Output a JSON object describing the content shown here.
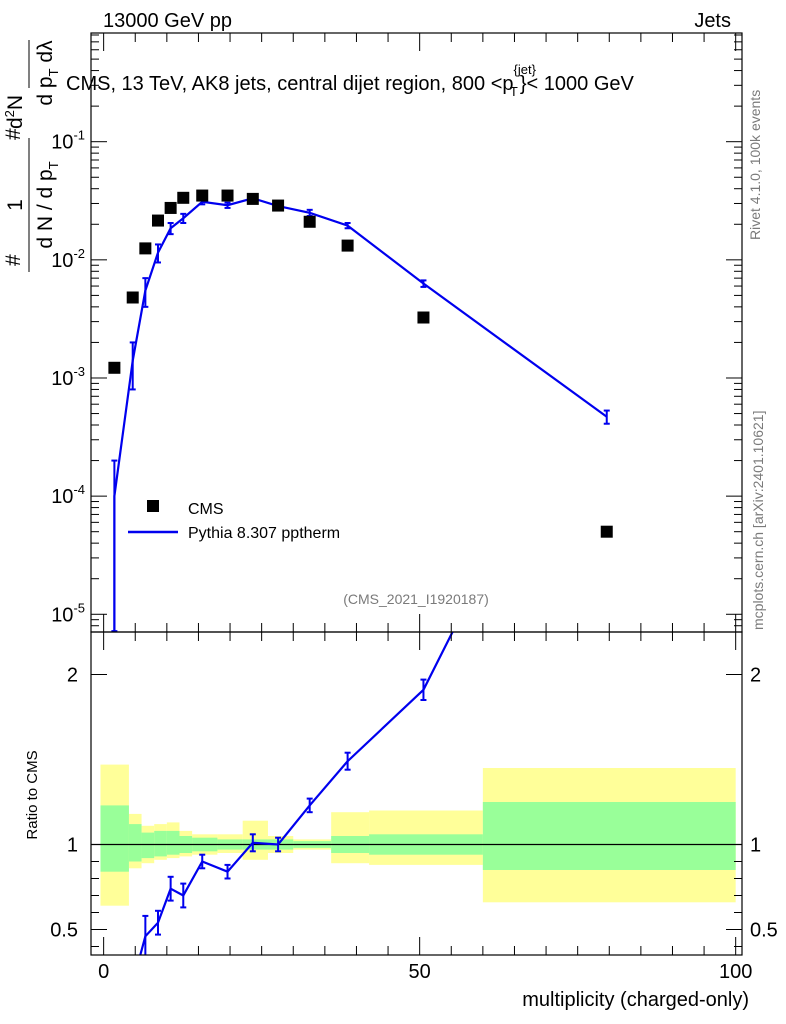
{
  "header": {
    "left_label": "13000 GeV pp",
    "right_label": "Jets"
  },
  "plot_title": {
    "main": "CMS, 13 TeV, AK8 jets, central dijet region, 800 <p",
    "sup": "{jet}",
    "sub": "T",
    "tail": "}< 1000 GeV"
  },
  "y_axis_main": {
    "one": "1",
    "denominator": "d N / d p",
    "denominator_sub": "T",
    "hash1": "#",
    "hash2": "#",
    "dN": "d",
    "dN_sup": "2",
    "dN_tail": "N",
    "num_frac": "d p",
    "num_frac_sub": "T",
    "num_frac_tail": " dλ"
  },
  "side_texts": {
    "rivet": "Rivet 4.1.0,  100k events",
    "mcplots": "mcplots.cern.ch [arXiv:2401.10621]"
  },
  "analysis_id": "(CMS_2021_I1920187)",
  "legend": {
    "data_label": "CMS",
    "mc_label": "Pythia 8.307 pptherm"
  },
  "x_axis_title": "multiplicity (charged-only)",
  "ratio_y_title": "Ratio to CMS",
  "colors": {
    "data": "#000000",
    "mc": "#0000ee",
    "band_inner": "#99ff99",
    "band_outer": "#ffff99"
  },
  "chart_data": {
    "type": "scatter",
    "title": "CMS, 13 TeV, AK8 jets, central dijet region, 800 < pT jet < 1000 GeV",
    "xlabel": "multiplicity (charged-only)",
    "ylabel": "1/(dN/dpT) d2N/(dpT dλ)",
    "xlim": [
      -2,
      101
    ],
    "ylim_log": [
      -5.15,
      -0.08
    ],
    "x_ticks": [
      0,
      50,
      100
    ],
    "x_tick_labels": [
      "0",
      "50",
      "100"
    ],
    "y_ticks": [
      {
        "exp": -5,
        "label": "10",
        "sup": "-5"
      },
      {
        "exp": -4,
        "label": "10",
        "sup": "-4"
      },
      {
        "exp": -3,
        "label": "10",
        "sup": "-3"
      },
      {
        "exp": -2,
        "label": "10",
        "sup": "-2"
      },
      {
        "exp": -1,
        "label": "10",
        "sup": "-1"
      }
    ],
    "ratio_ylim": [
      0.35,
      2.25
    ],
    "ratio_ticks": [
      0.5,
      1,
      2
    ],
    "ratio_tick_labels": [
      "0.5",
      "1",
      "2"
    ],
    "bins": [
      [
        0,
        4
      ],
      [
        4,
        6
      ],
      [
        6,
        8
      ],
      [
        8,
        10
      ],
      [
        10,
        12
      ],
      [
        12,
        14
      ],
      [
        14,
        18
      ],
      [
        18,
        22
      ],
      [
        22,
        26
      ],
      [
        26,
        30
      ],
      [
        30,
        36
      ],
      [
        36,
        42
      ],
      [
        42,
        60
      ],
      [
        60,
        100
      ]
    ],
    "series": [
      {
        "name": "CMS",
        "x": [
          1.7,
          4.6,
          6.6,
          8.6,
          10.6,
          12.6,
          15.6,
          19.6,
          23.6,
          27.6,
          32.6,
          38.6,
          50.6,
          79.6
        ],
        "y": [
          0.00122,
          0.0048,
          0.0125,
          0.0215,
          0.0275,
          0.0335,
          0.035,
          0.035,
          0.0328,
          0.0288,
          0.021,
          0.0132,
          0.00325,
          5e-05
        ]
      },
      {
        "name": "Pythia 8.307 pptherm",
        "x": [
          1.7,
          4.6,
          6.6,
          8.6,
          10.6,
          12.6,
          15.6,
          19.6,
          23.6,
          27.6,
          32.6,
          38.6,
          50.6,
          79.6
        ],
        "y": [
          0.0001,
          0.0014,
          0.0055,
          0.0115,
          0.0185,
          0.0225,
          0.031,
          0.029,
          0.0332,
          0.0285,
          0.025,
          0.0195,
          0.0063,
          0.00047
        ],
        "yerr": [
          0.0001,
          0.0006,
          0.0015,
          0.002,
          0.002,
          0.002,
          0.0015,
          0.0015,
          0.0015,
          0.0015,
          0.0015,
          0.001,
          0.0004,
          6e-05
        ]
      }
    ],
    "ratio": {
      "mc_x": [
        6.6,
        8.6,
        10.6,
        12.6,
        15.6,
        19.6,
        23.6,
        27.6,
        32.6,
        38.6,
        50.6,
        55.2
      ],
      "mc_y": [
        0.46,
        0.54,
        0.74,
        0.7,
        0.9,
        0.84,
        1.01,
        1.0,
        1.23,
        1.49,
        1.91,
        2.25
      ],
      "mc_err": [
        0.12,
        0.07,
        0.07,
        0.07,
        0.04,
        0.04,
        0.05,
        0.04,
        0.04,
        0.05,
        0.06,
        0
      ],
      "band_inner": [
        {
          "x0": -0.5,
          "x1": 4,
          "lo": 0.84,
          "hi": 1.23
        },
        {
          "x0": 4,
          "x1": 6,
          "lo": 0.9,
          "hi": 1.12
        },
        {
          "x0": 6,
          "x1": 8,
          "lo": 0.92,
          "hi": 1.07
        },
        {
          "x0": 8,
          "x1": 10,
          "lo": 0.93,
          "hi": 1.08
        },
        {
          "x0": 10,
          "x1": 12,
          "lo": 0.94,
          "hi": 1.08
        },
        {
          "x0": 12,
          "x1": 14,
          "lo": 0.95,
          "hi": 1.05
        },
        {
          "x0": 14,
          "x1": 18,
          "lo": 0.96,
          "hi": 1.04
        },
        {
          "x0": 18,
          "x1": 22,
          "lo": 0.97,
          "hi": 1.03
        },
        {
          "x0": 22,
          "x1": 26,
          "lo": 0.97,
          "hi": 1.03
        },
        {
          "x0": 26,
          "x1": 30,
          "lo": 0.97,
          "hi": 1.03
        },
        {
          "x0": 30,
          "x1": 36,
          "lo": 0.98,
          "hi": 1.02
        },
        {
          "x0": 36,
          "x1": 42,
          "lo": 0.95,
          "hi": 1.05
        },
        {
          "x0": 42,
          "x1": 60,
          "lo": 0.94,
          "hi": 1.06
        },
        {
          "x0": 60,
          "x1": 100,
          "lo": 0.85,
          "hi": 1.25
        }
      ],
      "band_outer": [
        {
          "x0": -0.5,
          "x1": 4,
          "lo": 0.64,
          "hi": 1.47
        },
        {
          "x0": 4,
          "x1": 6,
          "lo": 0.86,
          "hi": 1.18
        },
        {
          "x0": 6,
          "x1": 8,
          "lo": 0.89,
          "hi": 1.11
        },
        {
          "x0": 8,
          "x1": 10,
          "lo": 0.91,
          "hi": 1.12
        },
        {
          "x0": 10,
          "x1": 12,
          "lo": 0.92,
          "hi": 1.13
        },
        {
          "x0": 12,
          "x1": 14,
          "lo": 0.93,
          "hi": 1.08
        },
        {
          "x0": 14,
          "x1": 18,
          "lo": 0.94,
          "hi": 1.06
        },
        {
          "x0": 18,
          "x1": 22,
          "lo": 0.95,
          "hi": 1.06
        },
        {
          "x0": 22,
          "x1": 26,
          "lo": 0.91,
          "hi": 1.14
        },
        {
          "x0": 26,
          "x1": 30,
          "lo": 0.95,
          "hi": 1.05
        },
        {
          "x0": 30,
          "x1": 36,
          "lo": 0.97,
          "hi": 1.03
        },
        {
          "x0": 36,
          "x1": 42,
          "lo": 0.89,
          "hi": 1.19
        },
        {
          "x0": 42,
          "x1": 60,
          "lo": 0.88,
          "hi": 1.2
        },
        {
          "x0": 60,
          "x1": 100,
          "lo": 0.66,
          "hi": 1.45
        }
      ]
    }
  }
}
